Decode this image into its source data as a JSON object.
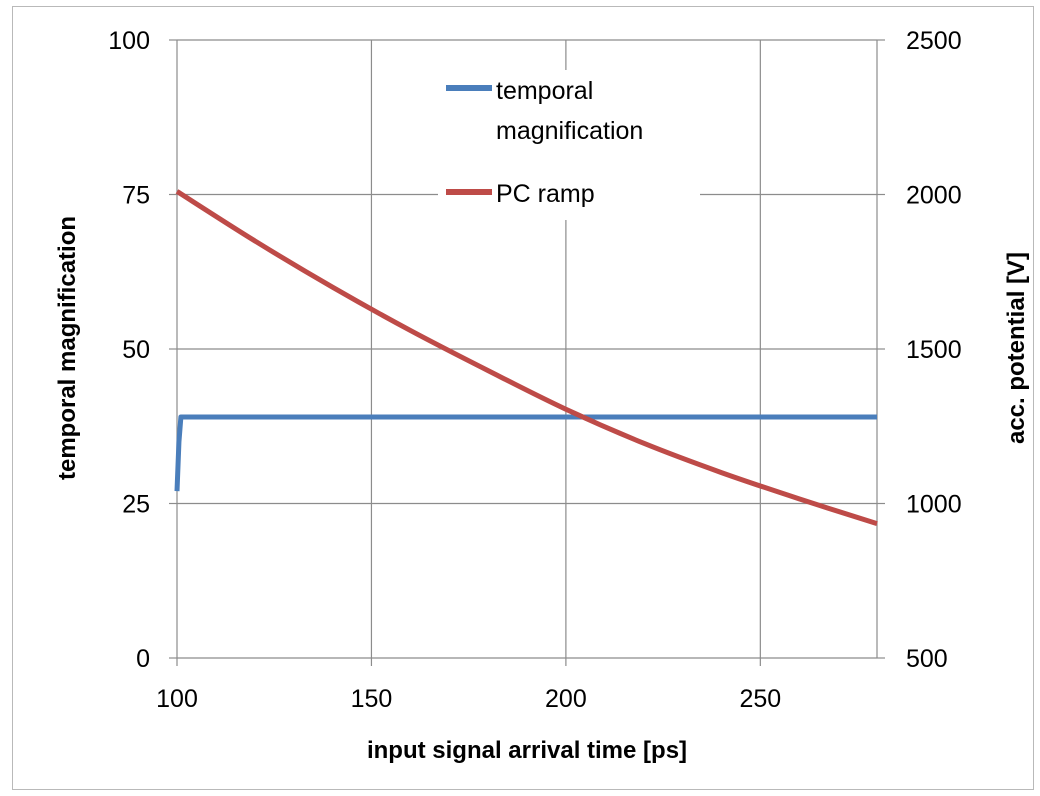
{
  "chart_data": {
    "type": "line",
    "title": "",
    "xlabel": "input signal arrival time [ps]",
    "ylabel_left": "temporal magnification",
    "ylabel_right": "acc. potential [V]",
    "xlim": [
      100,
      280
    ],
    "ylim_left": [
      0,
      100
    ],
    "ylim_right": [
      500,
      2500
    ],
    "x_ticks": [
      100,
      150,
      200,
      250
    ],
    "y_left_ticks": [
      0,
      25,
      50,
      75,
      100
    ],
    "y_right_ticks": [
      500,
      1000,
      1500,
      2000,
      2500
    ],
    "grid": true,
    "legend_position": "top-center",
    "series": [
      {
        "name": "temporal magnification",
        "axis": "left",
        "color": "#4a7ebb",
        "x": [
          100,
          100.5,
          101,
          101.5,
          150,
          200,
          250,
          280
        ],
        "y": [
          27,
          35,
          39,
          39,
          39,
          39,
          39,
          39
        ]
      },
      {
        "name": "PC ramp",
        "axis": "right",
        "color": "#be4b48",
        "x": [
          100,
          120,
          140,
          160,
          180,
          200,
          220,
          240,
          260,
          280
        ],
        "y": [
          2010,
          1850,
          1700,
          1560,
          1430,
          1305,
          1195,
          1100,
          1015,
          935
        ]
      }
    ]
  }
}
